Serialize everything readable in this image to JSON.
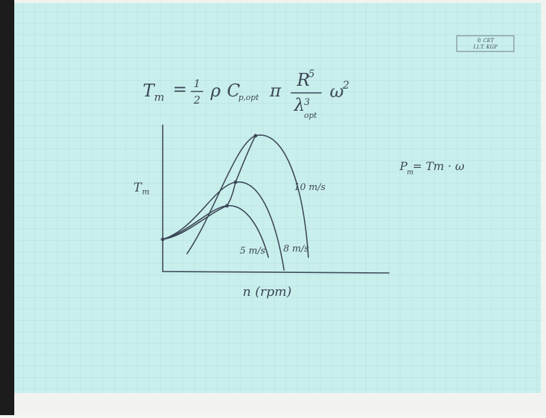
{
  "formula": {
    "lhs": "T",
    "lhs_sub": "m",
    "equals": "=",
    "half_num": "1",
    "half_den": "2",
    "rho": "ρ",
    "c": "C",
    "c_sub": "p,opt",
    "pi": "π",
    "num": "R",
    "num_sup": "5",
    "den": "λ",
    "den_sup": "3",
    "den_sub": "opt",
    "omega": "ω",
    "omega_sup": "2"
  },
  "plot": {
    "y_label": {
      "base": "T",
      "sub": "m"
    },
    "x_label": "n (rpm)",
    "curves": [
      {
        "label": "10 m/s"
      },
      {
        "label": "8 m/s"
      },
      {
        "label": "5 m/s"
      }
    ]
  },
  "power_eq": {
    "lhs": "P",
    "lhs_sub": "m",
    "rhs": "= Tm · ω"
  },
  "stamp": [
    "© CET",
    "I.I.T. KGP"
  ]
}
